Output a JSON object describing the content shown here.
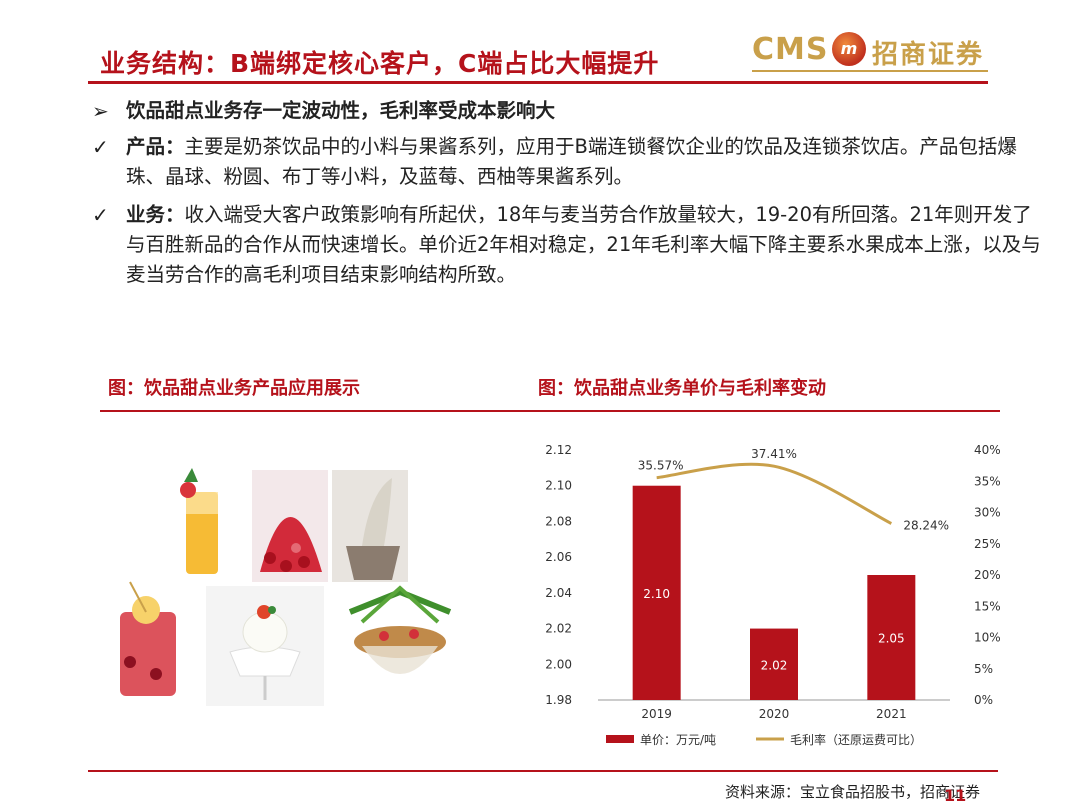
{
  "header": {
    "title": "业务结构：B端绑定核心客户，C端占比大幅提升",
    "logo_cms": "CMS",
    "logo_cn": "招商证券",
    "accent": "#b5121b",
    "gold": "#c9a04a"
  },
  "bullets": [
    {
      "icon": "arrow-bullet-icon",
      "head": "",
      "text": "饮品甜点业务存一定波动性，毛利率受成本影响大"
    },
    {
      "icon": "check-icon",
      "head": "产品：",
      "text": "主要是奶茶饮品中的小料与果酱系列，应用于B端连锁餐饮企业的饮品及连锁茶饮店。产品包括爆珠、晶球、粉圆、布丁等小料，及蓝莓、西柚等果酱系列。"
    },
    {
      "icon": "check-icon",
      "head": "业务：",
      "text": "收入端受大客户政策影响有所起伏，18年与麦当劳合作放量较大，19-20有所回落。21年则开发了与百胜新品的合作从而快速增长。单价近2年相对稳定，21年毛利率大幅下降主要系水果成本上涨，以及与麦当劳合作的高毛利项目结束影响结构所致。"
    }
  ],
  "figures": {
    "left_title": "图：饮品甜点业务产品应用展示",
    "right_title": "图：饮品甜点业务单价与毛利率变动"
  },
  "chart_data": {
    "type": "bar",
    "categories": [
      "2019",
      "2020",
      "2021"
    ],
    "series": [
      {
        "name": "单价：万元/吨",
        "type": "bar",
        "values": [
          2.1,
          2.02,
          2.05
        ],
        "labels": [
          "2.10",
          "2.02",
          "2.05"
        ],
        "color": "#b5121b",
        "axis": "left"
      },
      {
        "name": "毛利率（还原运费可比）",
        "type": "line",
        "values": [
          35.57,
          37.41,
          28.24
        ],
        "labels": [
          "35.57%",
          "37.41%",
          "28.24%"
        ],
        "color": "#c9a04a",
        "axis": "right"
      }
    ],
    "y_left": {
      "min": 1.98,
      "max": 2.12,
      "ticks": [
        "1.98",
        "2.00",
        "2.02",
        "2.04",
        "2.06",
        "2.08",
        "2.10",
        "2.12"
      ]
    },
    "y_right": {
      "min": 0,
      "max": 40,
      "ticks": [
        "0%",
        "5%",
        "10%",
        "15%",
        "20%",
        "25%",
        "30%",
        "35%",
        "40%"
      ]
    },
    "legend_position": "bottom",
    "grid": false
  },
  "footer": {
    "source": "资料来源：宝立食品招股书，招商证券",
    "page": "11"
  }
}
